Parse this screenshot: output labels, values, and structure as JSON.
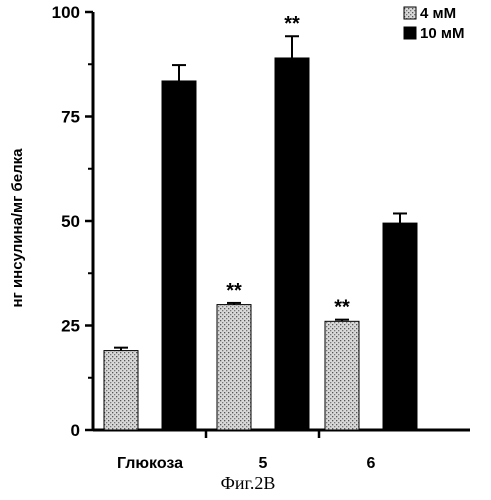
{
  "chart_data": {
    "type": "bar",
    "categories": [
      "Глюкоза",
      "5",
      "6"
    ],
    "series": [
      {
        "name": "4 мМ",
        "values": [
          19,
          30,
          26
        ],
        "errors": [
          0.7,
          0.4,
          0.4
        ],
        "significance": [
          "",
          "**",
          "**"
        ]
      },
      {
        "name": "10 мМ",
        "values": [
          83.5,
          89,
          49.5
        ],
        "errors": [
          3.8,
          5.2,
          2.3
        ],
        "significance": [
          "",
          "**",
          ""
        ]
      }
    ],
    "ylabel": "нг инсулина/мг белка",
    "ylim": [
      0,
      100
    ],
    "yticks": [
      0,
      25,
      50,
      75,
      100
    ],
    "legend_position": "top-right",
    "colors": {
      "4 мМ": "#c4c4c4",
      "10 мМ": "#000000"
    }
  },
  "caption": "Фиг.2В"
}
